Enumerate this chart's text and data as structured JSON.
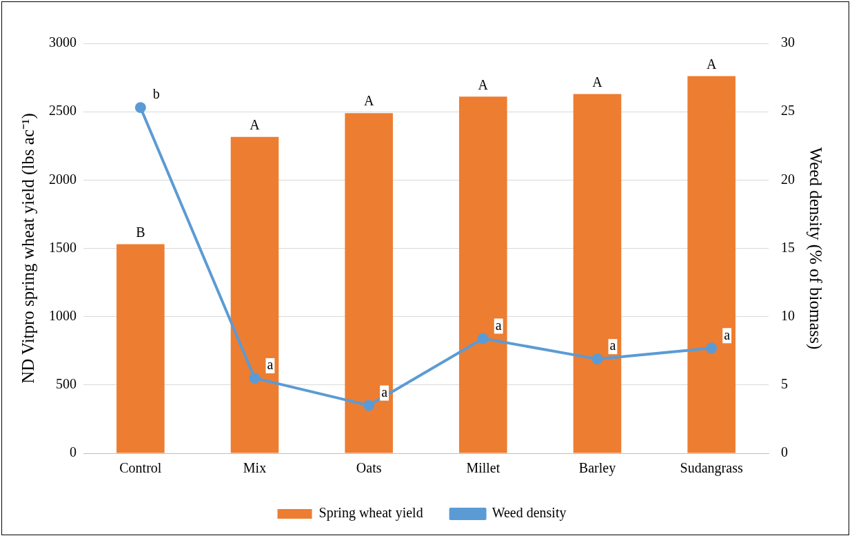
{
  "chart_data": {
    "type": "bar",
    "ylabel": "ND Vitpro spring wheat yield (lbs ac⁻¹)",
    "y2label": "Weed density (% of biomass)",
    "categories": [
      "Control",
      "Mix",
      "Oats",
      "Millet",
      "Barley",
      "Sudangrass"
    ],
    "series": [
      {
        "name": "Spring wheat yield",
        "color": "#ed7d31",
        "values": [
          1530,
          2315,
          2490,
          2610,
          2630,
          2760
        ],
        "value_labels": [
          "B",
          "A",
          "A",
          "A",
          "A",
          "A"
        ]
      },
      {
        "name": "Weed density",
        "type": "line",
        "axis": "y2",
        "color": "#5b9bd5",
        "values": [
          25.3,
          5.5,
          3.5,
          8.4,
          6.9,
          7.7
        ],
        "value_labels": [
          "b",
          "a",
          "a",
          "a",
          "a",
          "a"
        ]
      }
    ],
    "ylim": [
      0,
      3000
    ],
    "yticks": [
      0,
      500,
      1000,
      1500,
      2000,
      2500,
      3000
    ],
    "y2lim": [
      0,
      30
    ],
    "y2ticks": [
      0,
      5,
      10,
      15,
      20,
      25,
      30
    ],
    "grid": "y",
    "legend": "bottom",
    "marker": "circle",
    "line_style": "solid"
  }
}
